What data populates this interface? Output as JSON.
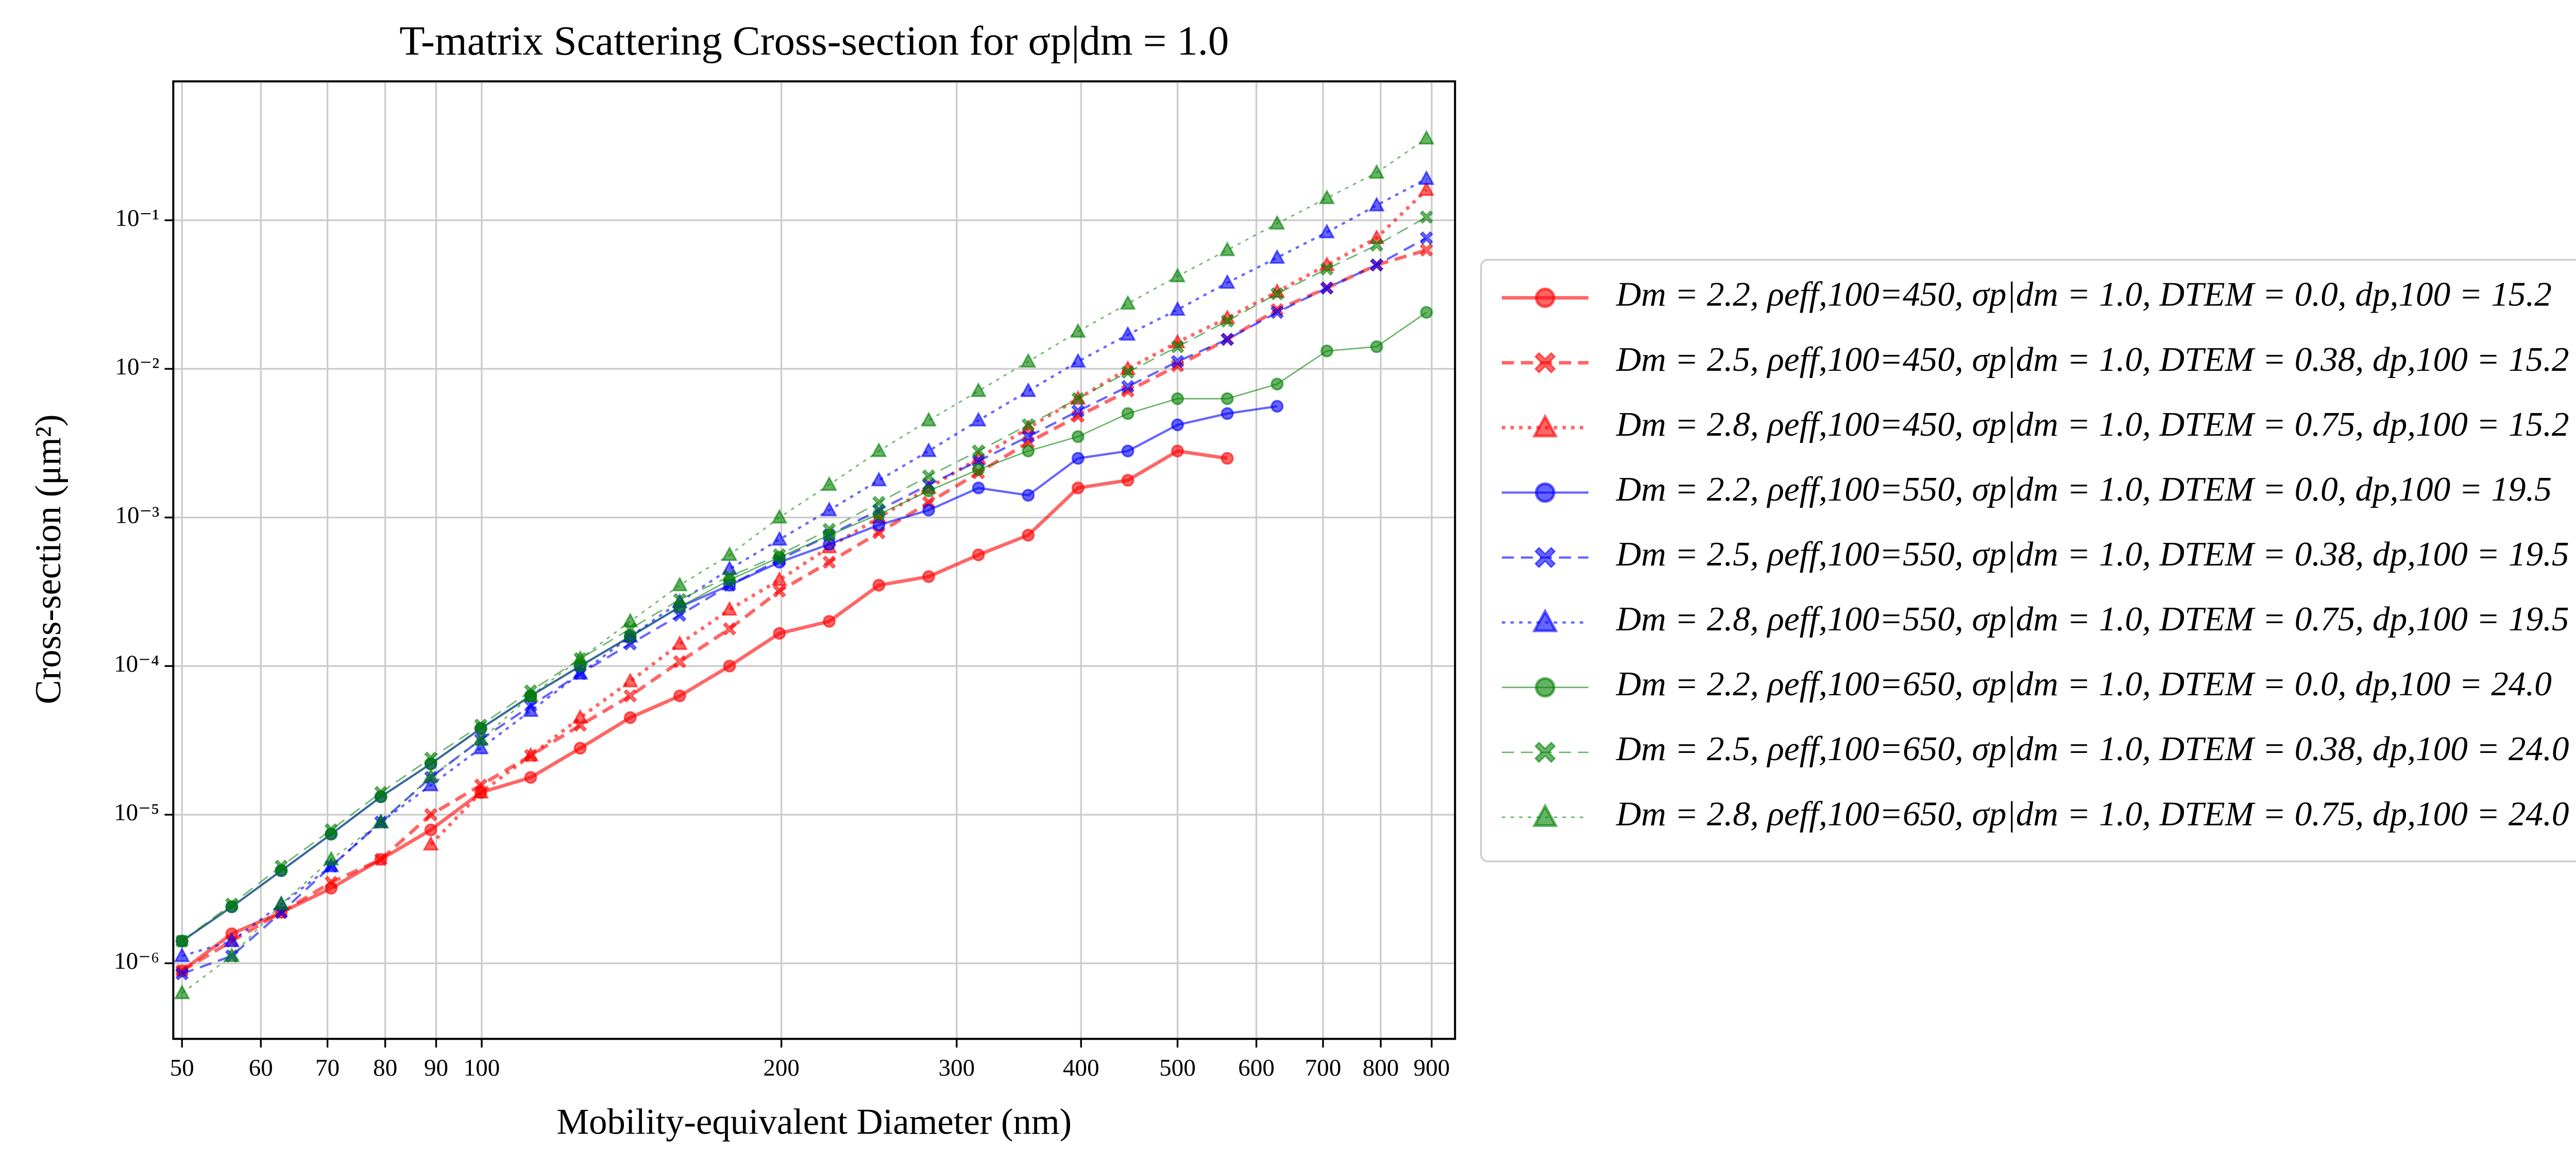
{
  "chart_data": {
    "type": "line",
    "title": "T-matrix Scattering Cross-section for σp|dm = 1.0",
    "x_label": "Mobility-equivalent Diameter (nm)",
    "y_label": "Cross-section (μm²)",
    "x_log": true,
    "y_log": true,
    "grid": true,
    "legend_position": "right",
    "xlim": [
      49,
      950
    ],
    "ylim": [
      3.1e-07,
      0.86
    ],
    "xticks": [
      50,
      60,
      70,
      80,
      90,
      100,
      200,
      300,
      400,
      500,
      600,
      700,
      800,
      900
    ],
    "yticks": [
      {
        "value": 1e-06,
        "label": "10⁻⁶"
      },
      {
        "value": 1e-05,
        "label": "10⁻⁵"
      },
      {
        "value": 0.0001,
        "label": "10⁻⁴"
      },
      {
        "value": 0.001,
        "label": "10⁻³"
      },
      {
        "value": 0.01,
        "label": "10⁻²"
      },
      {
        "value": 0.1,
        "label": "10⁻¹"
      }
    ],
    "x": [
      50,
      56.1,
      62.9,
      70.6,
      79.2,
      88.9,
      99.8,
      112,
      125.6,
      141,
      158.1,
      177.4,
      199.1,
      223.4,
      250.6,
      281.2,
      315.5,
      354,
      397.2,
      445.7,
      500,
      561,
      629.5,
      706.3,
      792.5,
      889.2
    ],
    "series": [
      {
        "name": "Dm = 2.2, ρeff,100=450, σp|dm = 1.0, DTEM = 0.0, dp,100 = 15.2",
        "color": "#ff0000",
        "marker": "o",
        "dash": "solid",
        "linewidth": 2,
        "values": [
          8.9e-07,
          1.58e-06,
          2.2e-06,
          3.2e-06,
          5e-06,
          7.9e-06,
          1.41e-05,
          1.78e-05,
          2.8e-05,
          4.5e-05,
          6.3e-05,
          0.0001,
          0.000166,
          0.0002,
          0.00035,
          0.0004,
          0.00056,
          0.00076,
          0.00158,
          0.00178,
          0.0028,
          0.0025,
          null,
          null,
          null,
          null
        ]
      },
      {
        "name": "Dm = 2.5, ρeff,100=450, σp|dm = 1.0, DTEM = 0.38, dp,100 = 15.2",
        "color": "#ff0000",
        "marker": "X",
        "dash": "dashed",
        "linewidth": 2,
        "values": [
          8.9e-07,
          1.41e-06,
          2.2e-06,
          3.5e-06,
          5e-06,
          1e-05,
          1.58e-05,
          2.5e-05,
          4e-05,
          6.3e-05,
          0.000107,
          0.000178,
          0.00032,
          0.0005,
          0.00079,
          0.00126,
          0.002,
          0.0032,
          0.0048,
          0.0071,
          0.0105,
          0.0158,
          0.025,
          0.035,
          0.05,
          0.063
        ]
      },
      {
        "name": "Dm = 2.8, ρeff,100=450, σp|dm = 1.0, DTEM = 0.75, dp,100 = 15.2",
        "color": "#ff0000",
        "marker": "^",
        "dash": "dotted",
        "linewidth": 2,
        "values": [
          null,
          null,
          null,
          null,
          null,
          6.3e-06,
          1.41e-05,
          2.5e-05,
          4.5e-05,
          7.9e-05,
          0.000141,
          0.00024,
          0.00038,
          0.00063,
          0.001,
          0.00158,
          0.0025,
          0.004,
          0.0063,
          0.01,
          0.0151,
          0.022,
          0.033,
          0.05,
          0.076,
          0.16
        ]
      },
      {
        "name": "Dm = 2.2, ρeff,100=550, σp|dm = 1.0, DTEM = 0.0, dp,100 = 19.5",
        "color": "#0000ff",
        "marker": "o",
        "dash": "solid",
        "linewidth": 1.3,
        "values": [
          1.41e-06,
          2.4e-06,
          4.2e-06,
          7.4e-06,
          1.32e-05,
          2.2e-05,
          3.8e-05,
          6.3e-05,
          0.0001,
          0.000158,
          0.00025,
          0.00035,
          0.0005,
          0.00066,
          0.00089,
          0.00112,
          0.00158,
          0.00141,
          0.0025,
          0.0028,
          0.0042,
          0.005,
          0.0056,
          null,
          null,
          null
        ]
      },
      {
        "name": "Dm = 2.5, ρeff,100=550, σp|dm = 1.0, DTEM = 0.38, dp,100 = 19.5",
        "color": "#0000ff",
        "marker": "X",
        "dash": "dashed",
        "linewidth": 1.3,
        "values": [
          8.5e-07,
          1.12e-06,
          2.2e-06,
          4.5e-06,
          8.9e-06,
          1.78e-05,
          3.2e-05,
          5.4e-05,
          8.9e-05,
          0.000141,
          0.00022,
          0.00035,
          0.00052,
          0.00076,
          0.00112,
          0.00166,
          0.0024,
          0.0035,
          0.0052,
          0.0076,
          0.0112,
          0.0158,
          0.024,
          0.035,
          0.05,
          0.076
        ]
      },
      {
        "name": "Dm = 2.8, ρeff,100=550, σp|dm = 1.0, DTEM = 0.75, dp,100 = 19.5",
        "color": "#0000ff",
        "marker": "^",
        "dash": "dotted",
        "linewidth": 1.3,
        "values": [
          1.12e-06,
          1.41e-06,
          2.5e-06,
          4.5e-06,
          8.9e-06,
          1.58e-05,
          2.8e-05,
          5e-05,
          8.9e-05,
          0.000158,
          0.00027,
          0.00045,
          0.00071,
          0.00112,
          0.00178,
          0.0028,
          0.0045,
          0.0071,
          0.0112,
          0.017,
          0.025,
          0.038,
          0.056,
          0.083,
          0.126,
          0.19
        ]
      },
      {
        "name": "Dm = 2.2, ρeff,100=650, σp|dm = 1.0, DTEM = 0.0, dp,100 = 24.0",
        "color": "#008000",
        "marker": "o",
        "dash": "solid",
        "linewidth": 0.8,
        "values": [
          1.41e-06,
          2.4e-06,
          4.2e-06,
          7.4e-06,
          1.32e-05,
          2.2e-05,
          3.8e-05,
          6.3e-05,
          0.0001,
          0.000158,
          0.00025,
          0.00038,
          0.00054,
          0.00076,
          0.00105,
          0.00151,
          0.0021,
          0.0028,
          0.0035,
          0.005,
          0.0063,
          0.0063,
          0.0079,
          0.0132,
          0.0141,
          0.024
        ]
      },
      {
        "name": "Dm = 2.5, ρeff,100=650, σp|dm = 1.0, DTEM = 0.38, dp,100 = 24.0",
        "color": "#008000",
        "marker": "X",
        "dash": "dashed",
        "linewidth": 0.8,
        "values": [
          1.41e-06,
          2.5e-06,
          4.5e-06,
          7.9e-06,
          1.41e-05,
          2.4e-05,
          4e-05,
          6.8e-05,
          0.000112,
          0.000178,
          0.00028,
          0.0004,
          0.00056,
          0.00083,
          0.00126,
          0.0019,
          0.0028,
          0.0042,
          0.0063,
          0.0095,
          0.0141,
          0.021,
          0.032,
          0.047,
          0.068,
          0.105
        ]
      },
      {
        "name": "Dm = 2.8, ρeff,100=650, σp|dm = 1.0, DTEM = 0.75, dp,100 = 24.0",
        "color": "#008000",
        "marker": "^",
        "dash": "dotted",
        "linewidth": 0.8,
        "values": [
          6.3e-07,
          1.12e-06,
          2.5e-06,
          5e-06,
          8.9e-06,
          1.8e-05,
          3.2e-05,
          6.3e-05,
          0.000112,
          0.0002,
          0.00035,
          0.00056,
          0.001,
          0.00166,
          0.0028,
          0.0045,
          0.0071,
          0.0112,
          0.0178,
          0.0275,
          0.042,
          0.063,
          0.095,
          0.141,
          0.209,
          0.355
        ]
      }
    ]
  }
}
